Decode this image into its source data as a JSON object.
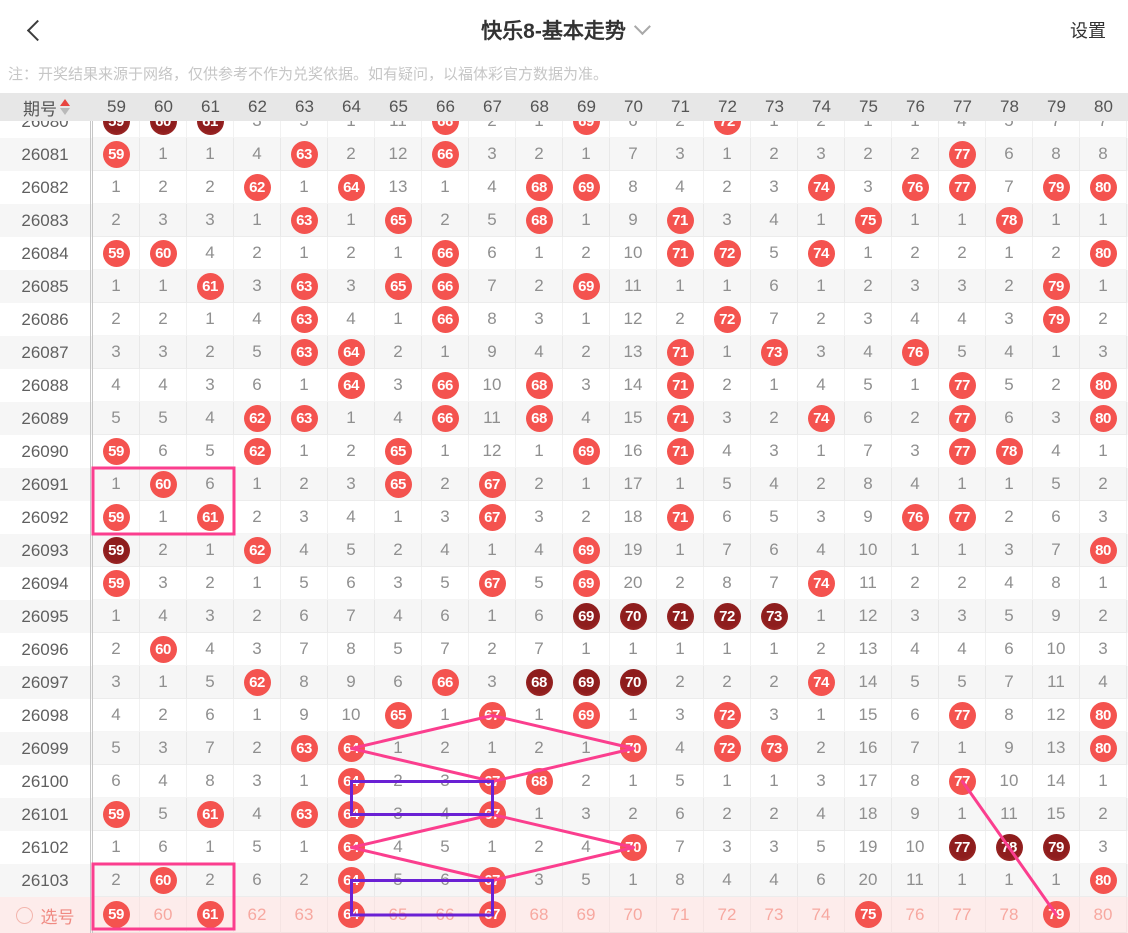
{
  "appbar": {
    "title": "快乐8-基本走势",
    "settings": "设置",
    "back_icon": "chevron-left",
    "title_caret": "chevron-down"
  },
  "note": "注：开奖结果来源于网络，仅供参考不作为兑奖依据。如有疑问，以福体彩官方数据为准。",
  "colors": {
    "accent_red": "#e8443f",
    "ball_red": "#f4534f",
    "ball_dark": "#8e1d1d",
    "line_pink": "#fb3e8e",
    "box_purple": "#6a21d4",
    "select_bg": "#fdeceb",
    "select_text": "#f7a8a0",
    "select_strong": "#f08a82"
  },
  "table": {
    "period_header": "期号",
    "columns": [
      "59",
      "60",
      "61",
      "62",
      "63",
      "64",
      "65",
      "66",
      "67",
      "68",
      "69",
      "70",
      "71",
      "72",
      "73",
      "74",
      "75",
      "76",
      "77",
      "78",
      "79",
      "80"
    ],
    "cell_encoding": {
      "R": "drawn number red ball",
      "D": "drawn number dark ball (consecutive)",
      "plain": "miss count"
    },
    "rows": [
      {
        "period": "26080",
        "cells": [
          "D59",
          "D60",
          "D61",
          "3",
          "5",
          "1",
          "11",
          "R66",
          "2",
          "1",
          "R69",
          "6",
          "2",
          "R72",
          "1",
          "2",
          "1",
          "1",
          "4",
          "5",
          "7",
          "7"
        ]
      },
      {
        "period": "26081",
        "cells": [
          "R59",
          "1",
          "1",
          "4",
          "R63",
          "2",
          "12",
          "R66",
          "3",
          "2",
          "1",
          "7",
          "3",
          "1",
          "2",
          "3",
          "2",
          "2",
          "R77",
          "6",
          "8",
          "8"
        ]
      },
      {
        "period": "26082",
        "cells": [
          "1",
          "2",
          "2",
          "R62",
          "1",
          "R64",
          "13",
          "1",
          "4",
          "R68",
          "R69",
          "8",
          "4",
          "2",
          "3",
          "R74",
          "3",
          "R76",
          "R77",
          "7",
          "R79",
          "R80"
        ]
      },
      {
        "period": "26083",
        "cells": [
          "2",
          "3",
          "3",
          "1",
          "R63",
          "1",
          "R65",
          "2",
          "5",
          "R68",
          "1",
          "9",
          "R71",
          "3",
          "4",
          "1",
          "R75",
          "1",
          "1",
          "R78",
          "1",
          "1"
        ]
      },
      {
        "period": "26084",
        "cells": [
          "R59",
          "R60",
          "4",
          "2",
          "1",
          "2",
          "1",
          "R66",
          "6",
          "1",
          "2",
          "10",
          "R71",
          "R72",
          "5",
          "R74",
          "1",
          "2",
          "2",
          "1",
          "2",
          "R80"
        ]
      },
      {
        "period": "26085",
        "cells": [
          "1",
          "1",
          "R61",
          "3",
          "R63",
          "3",
          "R65",
          "R66",
          "7",
          "2",
          "R69",
          "11",
          "1",
          "1",
          "6",
          "1",
          "2",
          "3",
          "3",
          "2",
          "R79",
          "1"
        ]
      },
      {
        "period": "26086",
        "cells": [
          "2",
          "2",
          "1",
          "4",
          "R63",
          "4",
          "1",
          "R66",
          "8",
          "3",
          "1",
          "12",
          "2",
          "R72",
          "7",
          "2",
          "3",
          "4",
          "4",
          "3",
          "R79",
          "2"
        ]
      },
      {
        "period": "26087",
        "cells": [
          "3",
          "3",
          "2",
          "5",
          "R63",
          "R64",
          "2",
          "1",
          "9",
          "4",
          "2",
          "13",
          "R71",
          "1",
          "R73",
          "3",
          "4",
          "R76",
          "5",
          "4",
          "1",
          "3"
        ]
      },
      {
        "period": "26088",
        "cells": [
          "4",
          "4",
          "3",
          "6",
          "1",
          "R64",
          "3",
          "R66",
          "10",
          "R68",
          "3",
          "14",
          "R71",
          "2",
          "1",
          "4",
          "5",
          "1",
          "R77",
          "5",
          "2",
          "R80"
        ]
      },
      {
        "period": "26089",
        "cells": [
          "5",
          "5",
          "4",
          "R62",
          "R63",
          "1",
          "4",
          "R66",
          "11",
          "R68",
          "4",
          "15",
          "R71",
          "3",
          "2",
          "R74",
          "6",
          "2",
          "R77",
          "6",
          "3",
          "R80"
        ]
      },
      {
        "period": "26090",
        "cells": [
          "R59",
          "6",
          "5",
          "R62",
          "1",
          "2",
          "R65",
          "1",
          "12",
          "1",
          "R69",
          "16",
          "R71",
          "4",
          "3",
          "1",
          "7",
          "3",
          "R77",
          "R78",
          "4",
          "1"
        ]
      },
      {
        "period": "26091",
        "cells": [
          "1",
          "R60",
          "6",
          "1",
          "2",
          "3",
          "R65",
          "2",
          "R67",
          "2",
          "1",
          "17",
          "1",
          "5",
          "4",
          "2",
          "8",
          "4",
          "1",
          "1",
          "5",
          "2"
        ]
      },
      {
        "period": "26092",
        "cells": [
          "R59",
          "1",
          "R61",
          "2",
          "3",
          "4",
          "1",
          "3",
          "R67",
          "3",
          "2",
          "18",
          "R71",
          "6",
          "5",
          "3",
          "9",
          "R76",
          "R77",
          "2",
          "6",
          "3"
        ]
      },
      {
        "period": "26093",
        "cells": [
          "D59",
          "2",
          "1",
          "R62",
          "4",
          "5",
          "2",
          "4",
          "1",
          "4",
          "R69",
          "19",
          "1",
          "7",
          "6",
          "4",
          "10",
          "1",
          "1",
          "3",
          "7",
          "R80"
        ]
      },
      {
        "period": "26094",
        "cells": [
          "R59",
          "3",
          "2",
          "1",
          "5",
          "6",
          "3",
          "5",
          "R67",
          "5",
          "R69",
          "20",
          "2",
          "8",
          "7",
          "R74",
          "11",
          "2",
          "2",
          "4",
          "8",
          "1"
        ]
      },
      {
        "period": "26095",
        "cells": [
          "1",
          "4",
          "3",
          "2",
          "6",
          "7",
          "4",
          "6",
          "1",
          "6",
          "D69",
          "D70",
          "D71",
          "D72",
          "D73",
          "1",
          "12",
          "3",
          "3",
          "5",
          "9",
          "2"
        ]
      },
      {
        "period": "26096",
        "cells": [
          "2",
          "R60",
          "4",
          "3",
          "7",
          "8",
          "5",
          "7",
          "2",
          "7",
          "1",
          "1",
          "1",
          "1",
          "1",
          "2",
          "13",
          "4",
          "4",
          "6",
          "10",
          "3"
        ]
      },
      {
        "period": "26097",
        "cells": [
          "3",
          "1",
          "5",
          "R62",
          "8",
          "9",
          "6",
          "R66",
          "3",
          "D68",
          "D69",
          "D70",
          "2",
          "2",
          "2",
          "R74",
          "14",
          "5",
          "5",
          "7",
          "11",
          "4"
        ]
      },
      {
        "period": "26098",
        "cells": [
          "4",
          "2",
          "6",
          "1",
          "9",
          "10",
          "R65",
          "1",
          "R67",
          "1",
          "R69",
          "1",
          "3",
          "R72",
          "3",
          "1",
          "15",
          "6",
          "R77",
          "8",
          "12",
          "R80"
        ]
      },
      {
        "period": "26099",
        "cells": [
          "5",
          "3",
          "7",
          "2",
          "R63",
          "R64",
          "1",
          "2",
          "1",
          "2",
          "1",
          "R70",
          "4",
          "R72",
          "R73",
          "2",
          "16",
          "7",
          "1",
          "9",
          "13",
          "R80"
        ]
      },
      {
        "period": "26100",
        "cells": [
          "6",
          "4",
          "8",
          "3",
          "1",
          "R64",
          "2",
          "3",
          "R67",
          "R68",
          "2",
          "1",
          "5",
          "1",
          "1",
          "3",
          "17",
          "8",
          "R77",
          "10",
          "14",
          "1"
        ]
      },
      {
        "period": "26101",
        "cells": [
          "R59",
          "5",
          "R61",
          "4",
          "R63",
          "R64",
          "3",
          "4",
          "R67",
          "1",
          "3",
          "2",
          "6",
          "2",
          "2",
          "4",
          "18",
          "9",
          "1",
          "11",
          "15",
          "2"
        ]
      },
      {
        "period": "26102",
        "cells": [
          "1",
          "6",
          "1",
          "5",
          "1",
          "R64",
          "4",
          "5",
          "1",
          "2",
          "4",
          "R70",
          "7",
          "3",
          "3",
          "5",
          "19",
          "10",
          "D77",
          "D78",
          "D79",
          "3"
        ]
      },
      {
        "period": "26103",
        "cells": [
          "2",
          "R60",
          "2",
          "6",
          "2",
          "R64",
          "5",
          "6",
          "R67",
          "3",
          "5",
          "1",
          "8",
          "4",
          "4",
          "6",
          "20",
          "11",
          "1",
          "1",
          "1",
          "R80"
        ]
      }
    ],
    "select_row": {
      "label": "选号",
      "cells": [
        "R59",
        "60",
        "R61",
        "62",
        "63",
        "R64",
        "65",
        "66",
        "R67",
        "68",
        "69",
        "70",
        "71",
        "72",
        "73",
        "74",
        "R75",
        "76",
        "77",
        "78",
        "R79",
        "80"
      ],
      "selected_numbers": [
        "59",
        "61",
        "64",
        "67",
        "75",
        "79"
      ]
    }
  },
  "annotations": {
    "pink_boxes": [
      {
        "row_start": "26091",
        "row_end": "26092",
        "col_start": "59",
        "col_end": "61"
      },
      {
        "row_start": "26103",
        "row_end": "select",
        "col_start": "59",
        "col_end": "61"
      }
    ],
    "purple_boxes": [
      {
        "row_start": "26100",
        "row_end": "26101",
        "col_start": "64",
        "col_end": "67"
      },
      {
        "row_start": "26103",
        "row_end": "select",
        "col_start": "64",
        "col_end": "67"
      }
    ],
    "pink_lines": [
      [
        [
          "26099",
          "64"
        ],
        [
          "26098",
          "67"
        ],
        [
          "26099",
          "70"
        ],
        [
          "26100",
          "67"
        ],
        [
          "26099",
          "64"
        ]
      ],
      [
        [
          "26102",
          "64"
        ],
        [
          "26101",
          "67"
        ],
        [
          "26102",
          "70"
        ],
        [
          "26103",
          "67"
        ],
        [
          "26102",
          "64"
        ]
      ],
      [
        [
          "26100",
          "77"
        ],
        [
          "select",
          "79"
        ]
      ]
    ]
  }
}
